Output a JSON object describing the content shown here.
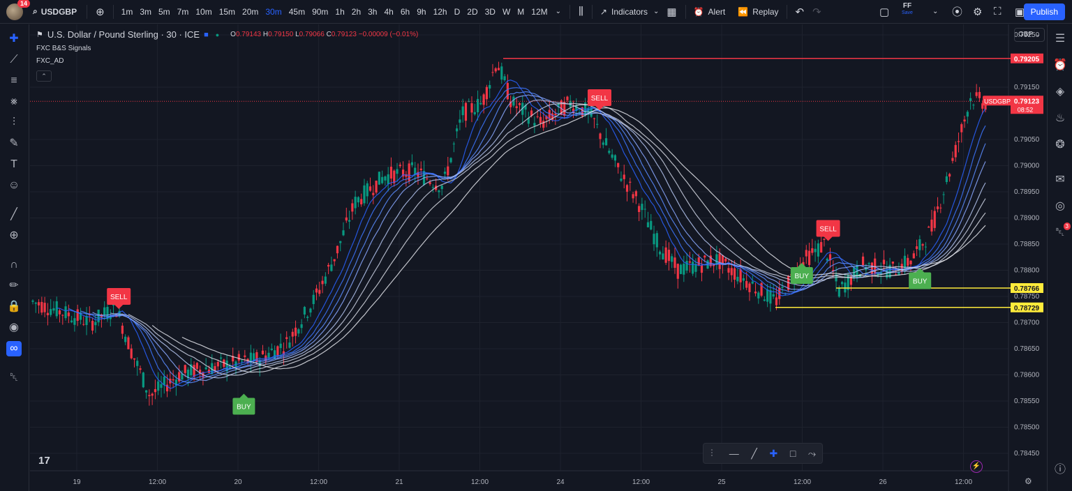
{
  "topbar": {
    "notifications": "14",
    "symbol": "USDGBP",
    "timeframes": [
      "1m",
      "3m",
      "5m",
      "7m",
      "10m",
      "15m",
      "20m",
      "30m",
      "45m",
      "90m",
      "1h",
      "2h",
      "3h",
      "4h",
      "6h",
      "9h",
      "12h",
      "D",
      "2D",
      "3D",
      "W",
      "M",
      "12M"
    ],
    "active_timeframe": "30m",
    "indicators_label": "Indicators",
    "alert_label": "Alert",
    "replay_label": "Replay",
    "layout_name": "FF",
    "layout_status": "Save",
    "publish_label": "Publish"
  },
  "legend": {
    "title": "U.S. Dollar / Pound Sterling · 30 · ICE",
    "open_label": "O",
    "open": "0.79143",
    "high_label": "H",
    "high": "0.79150",
    "low_label": "L",
    "low": "0.79066",
    "close_label": "C",
    "close": "0.79123",
    "change": "−0.00009 (−0.01%)",
    "indicators": [
      "FXC B&S Signals",
      "FXC_AD"
    ]
  },
  "currency": "GBP",
  "right_toolbar": {
    "alerts_badge": "3"
  },
  "colors": {
    "bull": "#089981",
    "bear": "#f23645",
    "accent": "#2962ff",
    "buy": "#4caf50",
    "sell": "#f23645",
    "level_red": "#f23645",
    "level_yellow": "#ffeb3b"
  },
  "chart_data": {
    "type": "candlestick",
    "symbol": "USDGBP",
    "interval": "30",
    "ylim": [
      0.7845,
      0.7925
    ],
    "y_ticks": [
      "0.79250",
      "0.79150",
      "0.79050",
      "0.79000",
      "0.78950",
      "0.78900",
      "0.78850",
      "0.78800",
      "0.78750",
      "0.78700",
      "0.78650",
      "0.78600",
      "0.78550",
      "0.78500",
      "0.78450"
    ],
    "x_labels": [
      "19",
      "12:00",
      "20",
      "12:00",
      "21",
      "12:00",
      "24",
      "12:00",
      "25",
      "12:00",
      "26",
      "12:00"
    ],
    "last_price": "0.79123",
    "countdown": "08:52",
    "price_tag_label": "USDGBP",
    "levels": [
      {
        "price": 0.79205,
        "label": "0.79205",
        "color": "#f23645"
      },
      {
        "price": 0.78766,
        "label": "0.78766",
        "color": "#ffeb3b"
      },
      {
        "price": 0.78729,
        "label": "0.78729",
        "color": "#ffeb3b"
      }
    ],
    "signals": [
      {
        "type": "SELL",
        "x_frac": 0.088,
        "price": 0.7875
      },
      {
        "type": "BUY",
        "x_frac": 0.216,
        "price": 0.7854
      },
      {
        "type": "SELL",
        "x_frac": 0.58,
        "price": 0.7913
      },
      {
        "type": "BUY",
        "x_frac": 0.787,
        "price": 0.7879
      },
      {
        "type": "SELL",
        "x_frac": 0.814,
        "price": 0.7888
      },
      {
        "type": "BUY",
        "x_frac": 0.908,
        "price": 0.7878
      }
    ],
    "path": [
      [
        0.0,
        0.7874
      ],
      [
        0.06,
        0.787
      ],
      [
        0.085,
        0.7873
      ],
      [
        0.1,
        0.7865
      ],
      [
        0.12,
        0.7856
      ],
      [
        0.15,
        0.786
      ],
      [
        0.17,
        0.7861
      ],
      [
        0.2,
        0.7862
      ],
      [
        0.23,
        0.7863
      ],
      [
        0.26,
        0.7866
      ],
      [
        0.29,
        0.7875
      ],
      [
        0.31,
        0.7883
      ],
      [
        0.33,
        0.7893
      ],
      [
        0.36,
        0.7898
      ],
      [
        0.39,
        0.7899
      ],
      [
        0.42,
        0.7896
      ],
      [
        0.44,
        0.791
      ],
      [
        0.46,
        0.7912
      ],
      [
        0.475,
        0.792
      ],
      [
        0.49,
        0.7912
      ],
      [
        0.52,
        0.7908
      ],
      [
        0.55,
        0.7912
      ],
      [
        0.57,
        0.791
      ],
      [
        0.6,
        0.7899
      ],
      [
        0.62,
        0.7893
      ],
      [
        0.64,
        0.7885
      ],
      [
        0.66,
        0.788
      ],
      [
        0.7,
        0.7882
      ],
      [
        0.73,
        0.7878
      ],
      [
        0.76,
        0.7874
      ],
      [
        0.79,
        0.7882
      ],
      [
        0.81,
        0.7885
      ],
      [
        0.825,
        0.7876
      ],
      [
        0.85,
        0.7881
      ],
      [
        0.88,
        0.788
      ],
      [
        0.9,
        0.7882
      ],
      [
        0.92,
        0.7888
      ],
      [
        0.94,
        0.79
      ],
      [
        0.96,
        0.7913
      ],
      [
        0.975,
        0.7912
      ]
    ]
  }
}
